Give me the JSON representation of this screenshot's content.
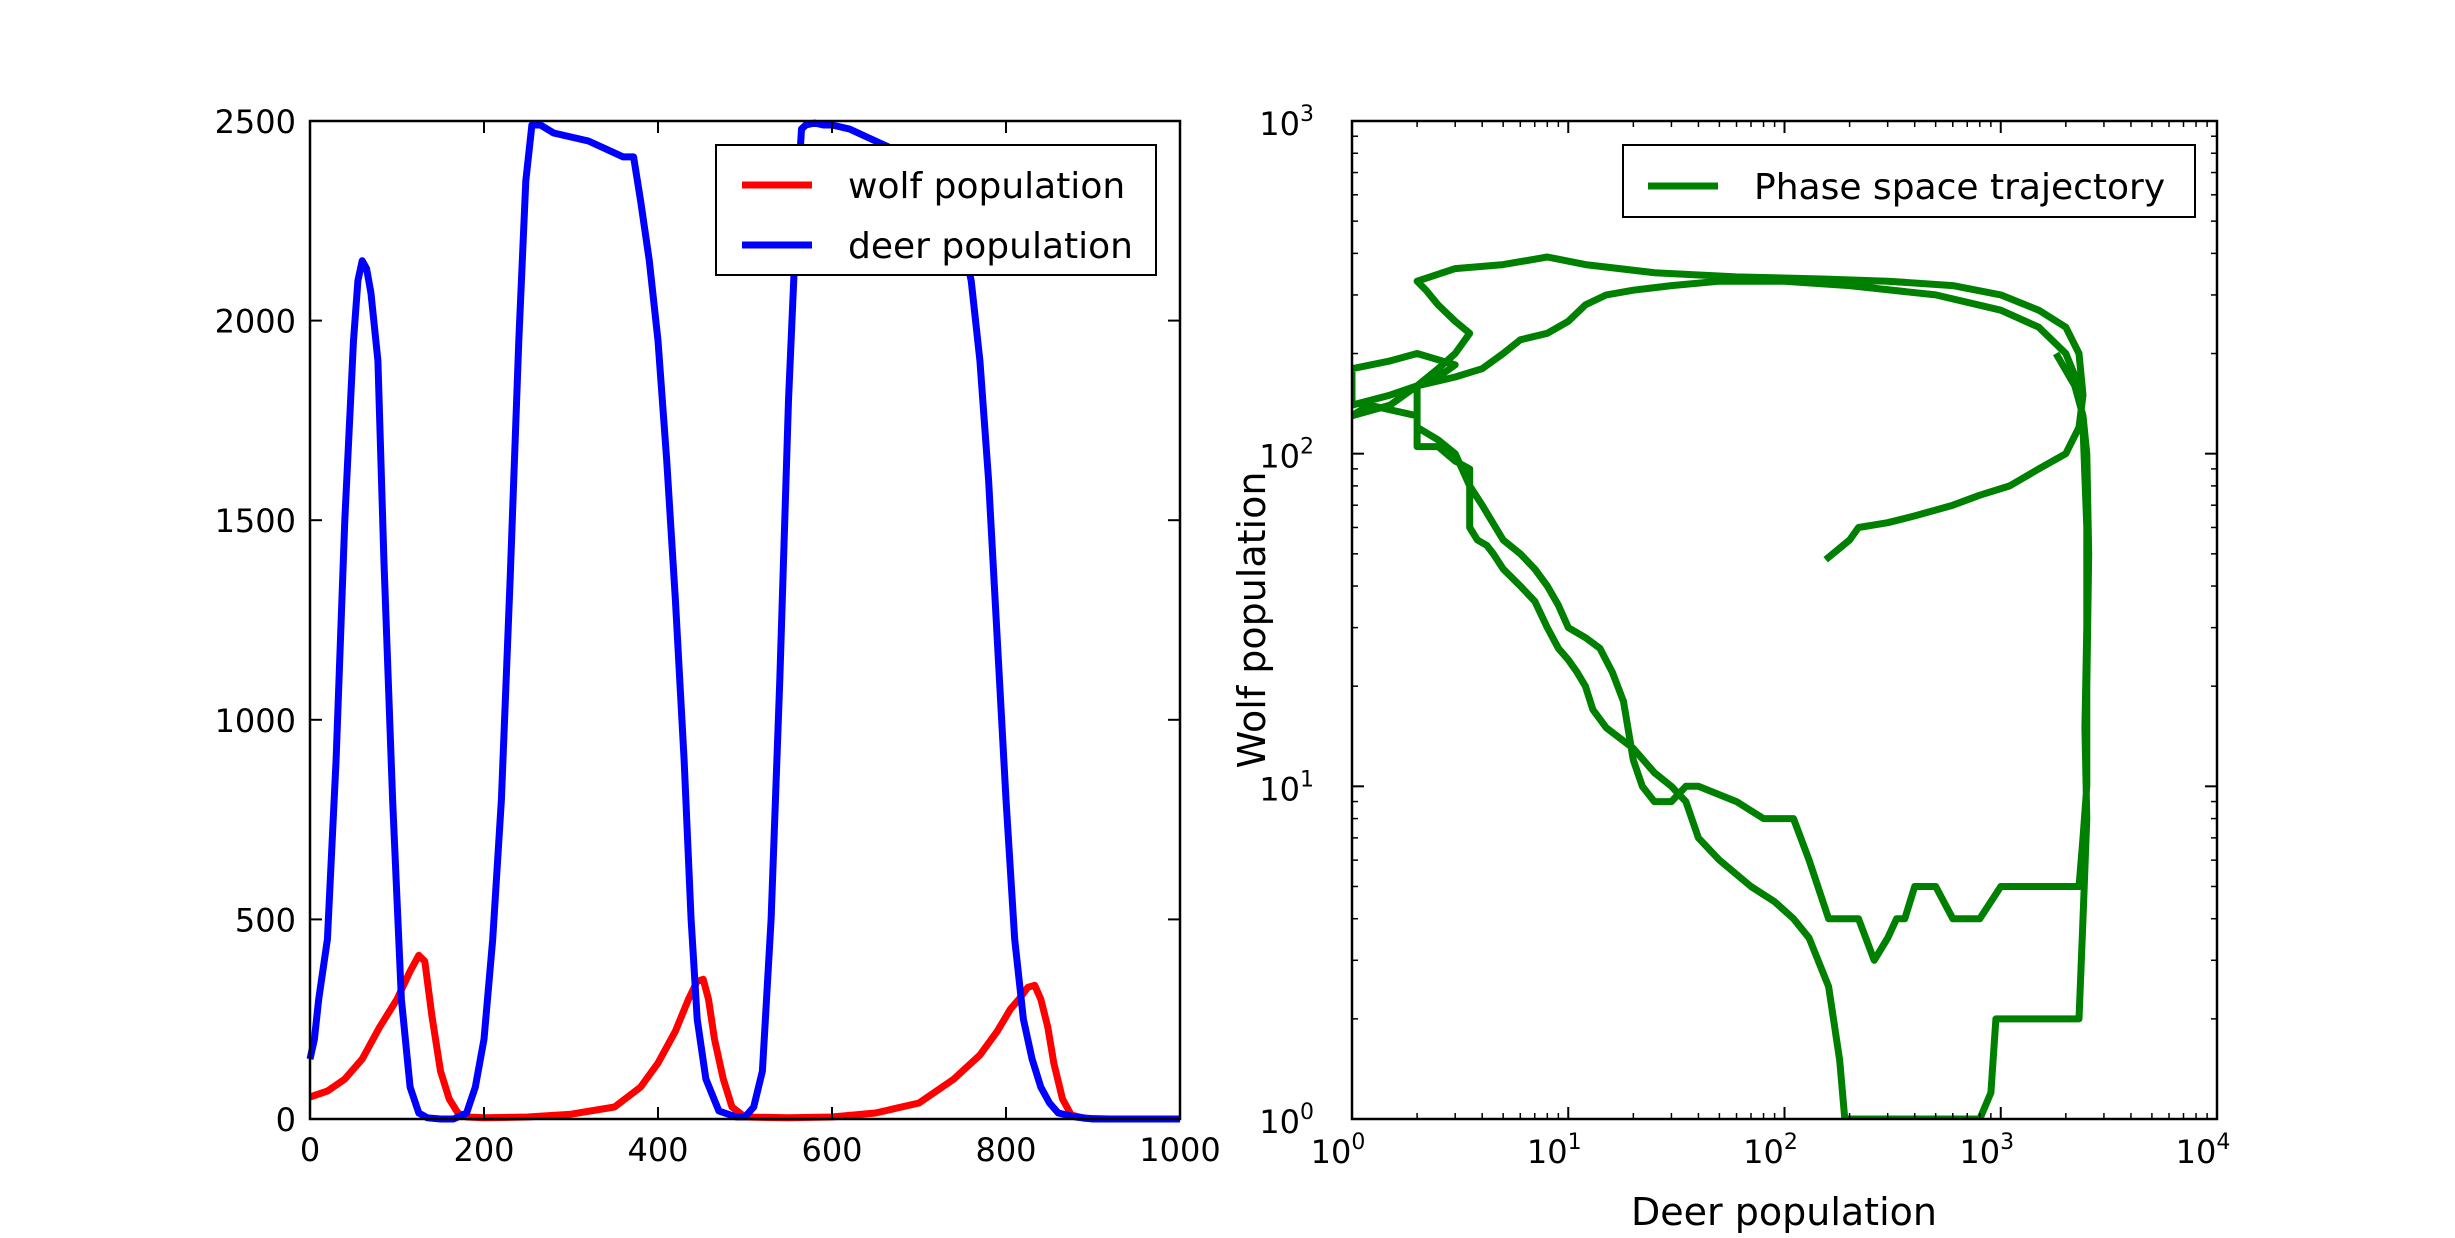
{
  "chart_data": [
    {
      "type": "line",
      "title": "",
      "xlabel": "",
      "ylabel": "",
      "xlim": [
        0,
        1000
      ],
      "ylim": [
        0,
        2500
      ],
      "x_ticks": [
        0,
        200,
        400,
        600,
        800,
        1000
      ],
      "y_ticks": [
        0,
        500,
        1000,
        1500,
        2000,
        2500
      ],
      "x_tick_labels": [
        "0",
        "200",
        "400",
        "600",
        "800",
        "1000"
      ],
      "y_tick_labels": [
        "0",
        "500",
        "1000",
        "1500",
        "2000",
        "2500"
      ],
      "grid": false,
      "legend_position": "top-right",
      "series": [
        {
          "name": "wolf population",
          "color": "#ff0000",
          "x": [
            0,
            20,
            40,
            60,
            80,
            100,
            115,
            125,
            132,
            140,
            150,
            160,
            170,
            180,
            200,
            250,
            300,
            350,
            380,
            400,
            420,
            435,
            445,
            452,
            458,
            465,
            475,
            485,
            500,
            550,
            600,
            650,
            700,
            740,
            770,
            790,
            805,
            815,
            825,
            833,
            840,
            848,
            855,
            865,
            875,
            890,
            920,
            1000
          ],
          "y": [
            55,
            70,
            100,
            150,
            230,
            300,
            370,
            410,
            395,
            260,
            120,
            50,
            15,
            5,
            3,
            5,
            12,
            30,
            80,
            140,
            220,
            300,
            345,
            350,
            300,
            200,
            100,
            30,
            5,
            3,
            5,
            15,
            40,
            100,
            160,
            220,
            275,
            300,
            330,
            335,
            300,
            230,
            140,
            50,
            10,
            2,
            0,
            0
          ]
        },
        {
          "name": "deer population",
          "color": "#0000ff",
          "x": [
            0,
            5,
            10,
            20,
            30,
            40,
            50,
            55,
            60,
            65,
            70,
            78,
            85,
            95,
            105,
            115,
            125,
            135,
            150,
            165,
            180,
            190,
            200,
            210,
            220,
            230,
            240,
            248,
            255,
            265,
            280,
            300,
            320,
            340,
            360,
            372,
            380,
            390,
            400,
            410,
            420,
            430,
            438,
            445,
            455,
            470,
            490,
            500,
            510,
            520,
            530,
            540,
            550,
            560,
            565,
            570,
            580,
            590,
            600,
            620,
            640,
            660,
            680,
            700,
            720,
            740,
            750,
            760,
            770,
            780,
            790,
            800,
            810,
            820,
            830,
            840,
            850,
            860,
            880,
            900,
            950,
            1000
          ],
          "y": [
            150,
            200,
            300,
            450,
            900,
            1500,
            1950,
            2100,
            2150,
            2130,
            2070,
            1900,
            1400,
            800,
            300,
            80,
            15,
            3,
            0,
            0,
            15,
            80,
            200,
            450,
            800,
            1350,
            1950,
            2350,
            2490,
            2490,
            2470,
            2460,
            2450,
            2430,
            2410,
            2410,
            2300,
            2150,
            1950,
            1650,
            1300,
            900,
            500,
            250,
            100,
            20,
            5,
            5,
            30,
            120,
            500,
            1100,
            1800,
            2300,
            2480,
            2490,
            2495,
            2490,
            2490,
            2480,
            2460,
            2440,
            2420,
            2400,
            2350,
            2280,
            2200,
            2100,
            1900,
            1600,
            1200,
            800,
            450,
            250,
            150,
            80,
            40,
            15,
            5,
            0,
            0,
            0
          ]
        }
      ]
    },
    {
      "type": "line",
      "title": "",
      "xlabel": "Deer population",
      "ylabel": "Wolf population",
      "x_scale": "log",
      "y_scale": "log",
      "xlim": [
        1,
        10000
      ],
      "ylim": [
        1,
        1000
      ],
      "x_ticks": [
        1,
        10,
        100,
        1000,
        10000
      ],
      "y_ticks": [
        1,
        10,
        100,
        1000
      ],
      "x_tick_labels": [
        {
          "base": "10",
          "exp": "0"
        },
        {
          "base": "10",
          "exp": "1"
        },
        {
          "base": "10",
          "exp": "2"
        },
        {
          "base": "10",
          "exp": "3"
        },
        {
          "base": "10",
          "exp": "4"
        }
      ],
      "y_tick_labels": [
        {
          "base": "10",
          "exp": "0"
        },
        {
          "base": "10",
          "exp": "1"
        },
        {
          "base": "10",
          "exp": "2"
        },
        {
          "base": "10",
          "exp": "3"
        }
      ],
      "grid": false,
      "legend_position": "top-right",
      "series": [
        {
          "name": "Phase space trajectory",
          "color": "#008000",
          "points": [
            [
              155,
              48
            ],
            [
              200,
              55
            ],
            [
              220,
              60
            ],
            [
              300,
              62
            ],
            [
              400,
              65
            ],
            [
              600,
              70
            ],
            [
              800,
              75
            ],
            [
              1100,
              80
            ],
            [
              1500,
              90
            ],
            [
              2000,
              100
            ],
            [
              2300,
              120
            ],
            [
              2400,
              150
            ],
            [
              2300,
              200
            ],
            [
              2000,
              240
            ],
            [
              1500,
              270
            ],
            [
              1000,
              300
            ],
            [
              600,
              320
            ],
            [
              300,
              330
            ],
            [
              150,
              335
            ],
            [
              60,
              340
            ],
            [
              25,
              350
            ],
            [
              12,
              370
            ],
            [
              8,
              390
            ],
            [
              5,
              370
            ],
            [
              3,
              360
            ],
            [
              2,
              330
            ],
            [
              2.2,
              310
            ],
            [
              2.5,
              280
            ],
            [
              3.0,
              250
            ],
            [
              3.5,
              230
            ],
            [
              3.0,
              200
            ],
            [
              2.5,
              180
            ],
            [
              2.0,
              160
            ],
            [
              1.5,
              150
            ],
            [
              1.0,
              140
            ],
            [
              1.0,
              180
            ],
            [
              1.5,
              190
            ],
            [
              2,
              200
            ],
            [
              3,
              185
            ],
            [
              2.5,
              170
            ],
            [
              2,
              160
            ],
            [
              1.5,
              140
            ],
            [
              1.0,
              130
            ],
            [
              1.2,
              140
            ],
            [
              2,
              130
            ],
            [
              2,
              105
            ],
            [
              2.5,
              105
            ],
            [
              3,
              95
            ],
            [
              3.5,
              90
            ],
            [
              3.5,
              70
            ],
            [
              3.5,
              60
            ],
            [
              3.8,
              55
            ],
            [
              4.2,
              53
            ],
            [
              4.5,
              50
            ],
            [
              5,
              45
            ],
            [
              6,
              40
            ],
            [
              7,
              36
            ],
            [
              8,
              30
            ],
            [
              9,
              26
            ],
            [
              10,
              24
            ],
            [
              11,
              22
            ],
            [
              12,
              20
            ],
            [
              13,
              17
            ],
            [
              15,
              15
            ],
            [
              20,
              13
            ],
            [
              25,
              11
            ],
            [
              30,
              10
            ],
            [
              35,
              9
            ],
            [
              40,
              7
            ],
            [
              50,
              6
            ],
            [
              70,
              5
            ],
            [
              90,
              4.5
            ],
            [
              110,
              4
            ],
            [
              130,
              3.5
            ],
            [
              160,
              2.5
            ],
            [
              180,
              1.5
            ],
            [
              190,
              1
            ],
            [
              300,
              1
            ],
            [
              600,
              1
            ],
            [
              800,
              1
            ],
            [
              900,
              1.2
            ],
            [
              950,
              2
            ],
            [
              1500,
              2
            ],
            [
              2300,
              2
            ],
            [
              2400,
              4
            ],
            [
              2500,
              8
            ],
            [
              2450,
              15
            ],
            [
              2500,
              30
            ],
            [
              2500,
              60
            ],
            [
              2400,
              120
            ],
            [
              2300,
              160
            ],
            [
              2000,
              200
            ],
            [
              1500,
              240
            ],
            [
              1000,
              270
            ],
            [
              500,
              300
            ],
            [
              200,
              320
            ],
            [
              100,
              330
            ],
            [
              50,
              330
            ],
            [
              30,
              320
            ],
            [
              20,
              310
            ],
            [
              15,
              300
            ],
            [
              12,
              280
            ],
            [
              10,
              250
            ],
            [
              8,
              230
            ],
            [
              6,
              220
            ],
            [
              5,
              200
            ],
            [
              4,
              180
            ],
            [
              3,
              170
            ],
            [
              2,
              160
            ],
            [
              2,
              120
            ],
            [
              2.5,
              110
            ],
            [
              3,
              100
            ],
            [
              3.5,
              80
            ],
            [
              4,
              70
            ],
            [
              5,
              55
            ],
            [
              6,
              50
            ],
            [
              7,
              45
            ],
            [
              8,
              40
            ],
            [
              9,
              35
            ],
            [
              10,
              30
            ],
            [
              12,
              28
            ],
            [
              14,
              26
            ],
            [
              16,
              22
            ],
            [
              18,
              18
            ],
            [
              20,
              12
            ],
            [
              22,
              10
            ],
            [
              25,
              9
            ],
            [
              30,
              9
            ],
            [
              35,
              10
            ],
            [
              40,
              10
            ],
            [
              60,
              9
            ],
            [
              80,
              8
            ],
            [
              110,
              8
            ],
            [
              130,
              6
            ],
            [
              160,
              4
            ],
            [
              180,
              4
            ],
            [
              220,
              4
            ],
            [
              260,
              3
            ],
            [
              300,
              3.5
            ],
            [
              330,
              4
            ],
            [
              360,
              4
            ],
            [
              400,
              5
            ],
            [
              500,
              5
            ],
            [
              600,
              4
            ],
            [
              800,
              4
            ],
            [
              1000,
              5
            ],
            [
              1500,
              5
            ],
            [
              2300,
              5
            ],
            [
              2400,
              7
            ],
            [
              2500,
              10
            ],
            [
              2500,
              20
            ],
            [
              2550,
              50
            ],
            [
              2500,
              100
            ],
            [
              2400,
              130
            ],
            [
              2200,
              160
            ],
            [
              1800,
              200
            ]
          ]
        }
      ]
    }
  ]
}
